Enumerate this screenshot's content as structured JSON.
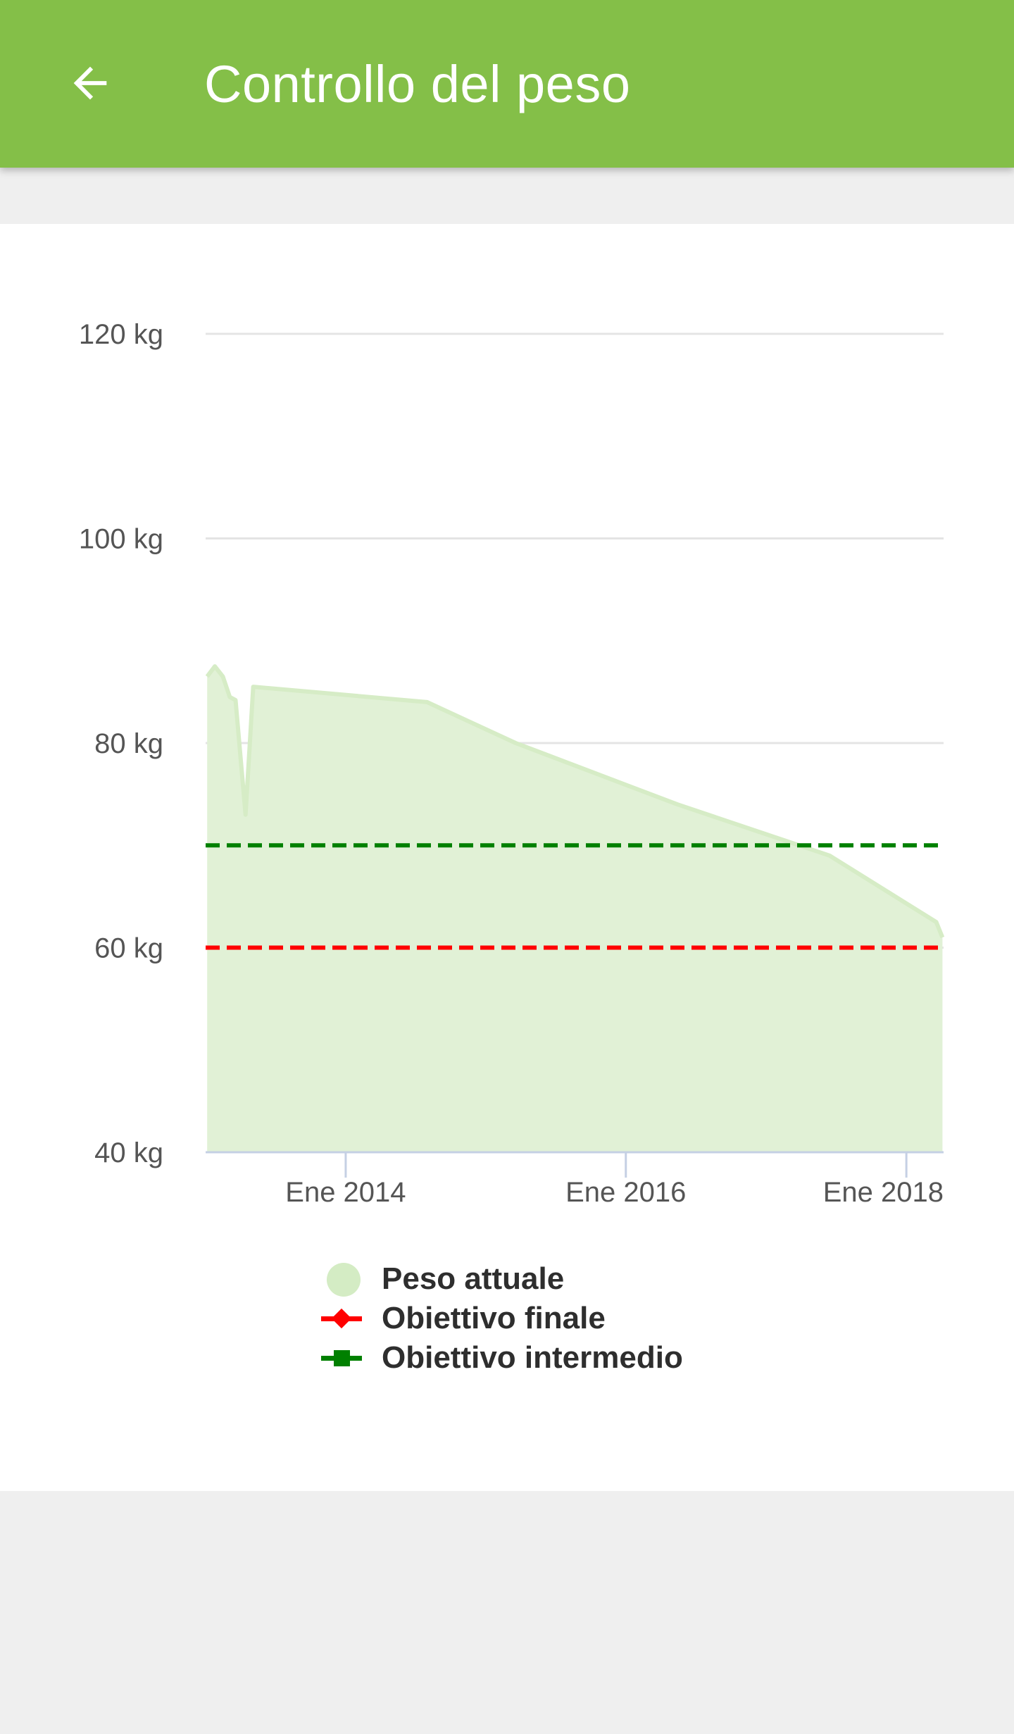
{
  "app_bar": {
    "title": "Controllo del peso",
    "back_icon": "arrow-back-icon"
  },
  "colors": {
    "app_bar": "#84bf48",
    "area_fill": "#e1f1d6",
    "area_stroke": "#d6ecc6",
    "final_goal": "#ff0000",
    "intermediate_goal": "#008000",
    "grid": "#e4e4e4",
    "axis": "#c5d0e4",
    "legend_text": "#2e2e2e"
  },
  "chart_data": {
    "type": "area",
    "title": "",
    "xlabel": "",
    "ylabel": "",
    "x_type": "date",
    "xlim": [
      "2013-01-01",
      "2018-04-08"
    ],
    "ylim": [
      40,
      120
    ],
    "y_ticks": [
      {
        "value": 40,
        "label": "40 kg"
      },
      {
        "value": 60,
        "label": "60 kg"
      },
      {
        "value": 80,
        "label": "80 kg"
      },
      {
        "value": 100,
        "label": "100 kg"
      },
      {
        "value": 120,
        "label": "120 kg"
      }
    ],
    "x_ticks": [
      {
        "value": "2014-01-01",
        "label": "Ene 2014"
      },
      {
        "value": "2016-01-01",
        "label": "Ene 2016"
      },
      {
        "value": "2018-01-01",
        "label": "Ene 2018"
      }
    ],
    "grid": true,
    "legend_position": "bottom",
    "series": [
      {
        "name": "Peso attuale",
        "type": "area",
        "points": [
          {
            "x": "2013-01-05",
            "y": 86.5
          },
          {
            "x": "2013-01-25",
            "y": 87.5
          },
          {
            "x": "2013-02-15",
            "y": 86.5
          },
          {
            "x": "2013-03-05",
            "y": 84.5
          },
          {
            "x": "2013-03-20",
            "y": 84.2
          },
          {
            "x": "2013-04-15",
            "y": 73
          },
          {
            "x": "2013-05-05",
            "y": 85.5
          },
          {
            "x": "2014-08-01",
            "y": 84
          },
          {
            "x": "2015-03-20",
            "y": 80
          },
          {
            "x": "2016-05-15",
            "y": 74
          },
          {
            "x": "2017-06-15",
            "y": 69
          },
          {
            "x": "2018-03-20",
            "y": 62.5
          },
          {
            "x": "2018-04-05",
            "y": 61
          }
        ]
      },
      {
        "name": "Obiettivo finale",
        "type": "line",
        "dashed": true,
        "value": 60
      },
      {
        "name": "Obiettivo intermedio",
        "type": "line",
        "dashed": true,
        "value": 70
      }
    ]
  },
  "legend": {
    "items": [
      {
        "label": "Peso attuale",
        "marker": "circle"
      },
      {
        "label": "Obiettivo finale",
        "marker": "line-diamond"
      },
      {
        "label": "Obiettivo intermedio",
        "marker": "line-square"
      }
    ]
  }
}
